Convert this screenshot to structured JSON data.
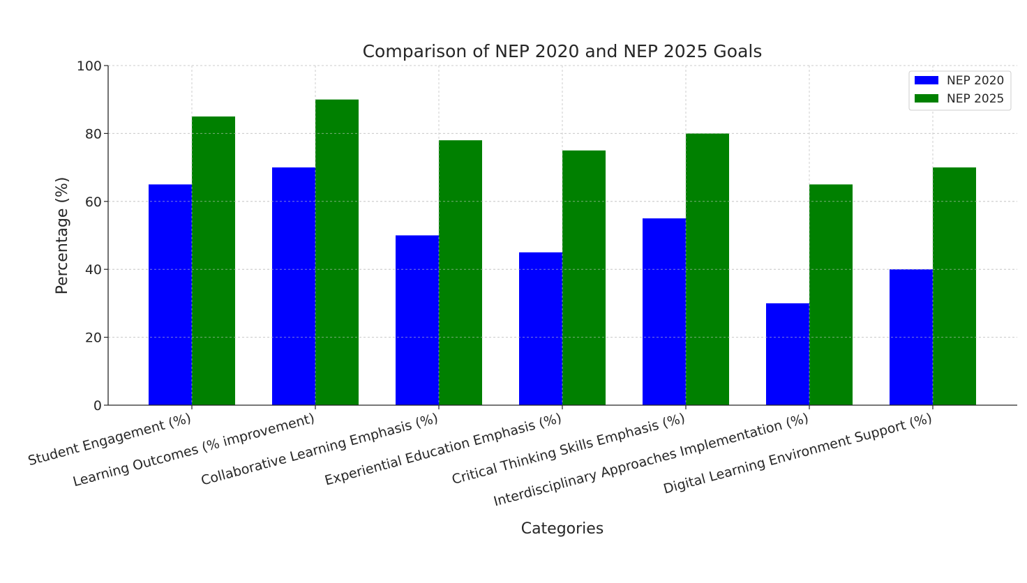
{
  "chart_data": {
    "type": "bar",
    "title": "Comparison of NEP 2020 and NEP 2025 Goals",
    "xlabel": "Categories",
    "ylabel": "Percentage (%)",
    "ylim": [
      0,
      100
    ],
    "yticks": [
      0,
      20,
      40,
      60,
      80,
      100
    ],
    "grid": true,
    "legend_position": "top-right",
    "categories": [
      "Student Engagement (%)",
      "Learning Outcomes (% improvement)",
      "Collaborative Learning Emphasis (%)",
      "Experiential Education Emphasis (%)",
      "Critical Thinking Skills Emphasis (%)",
      "Interdisciplinary Approaches Implementation (%)",
      "Digital Learning Environment Support (%)"
    ],
    "series": [
      {
        "name": "NEP 2020",
        "color": "#0000ff",
        "values": [
          65,
          70,
          50,
          45,
          55,
          30,
          40
        ]
      },
      {
        "name": "NEP 2025",
        "color": "#008000",
        "values": [
          85,
          90,
          78,
          75,
          80,
          65,
          70
        ]
      }
    ]
  }
}
